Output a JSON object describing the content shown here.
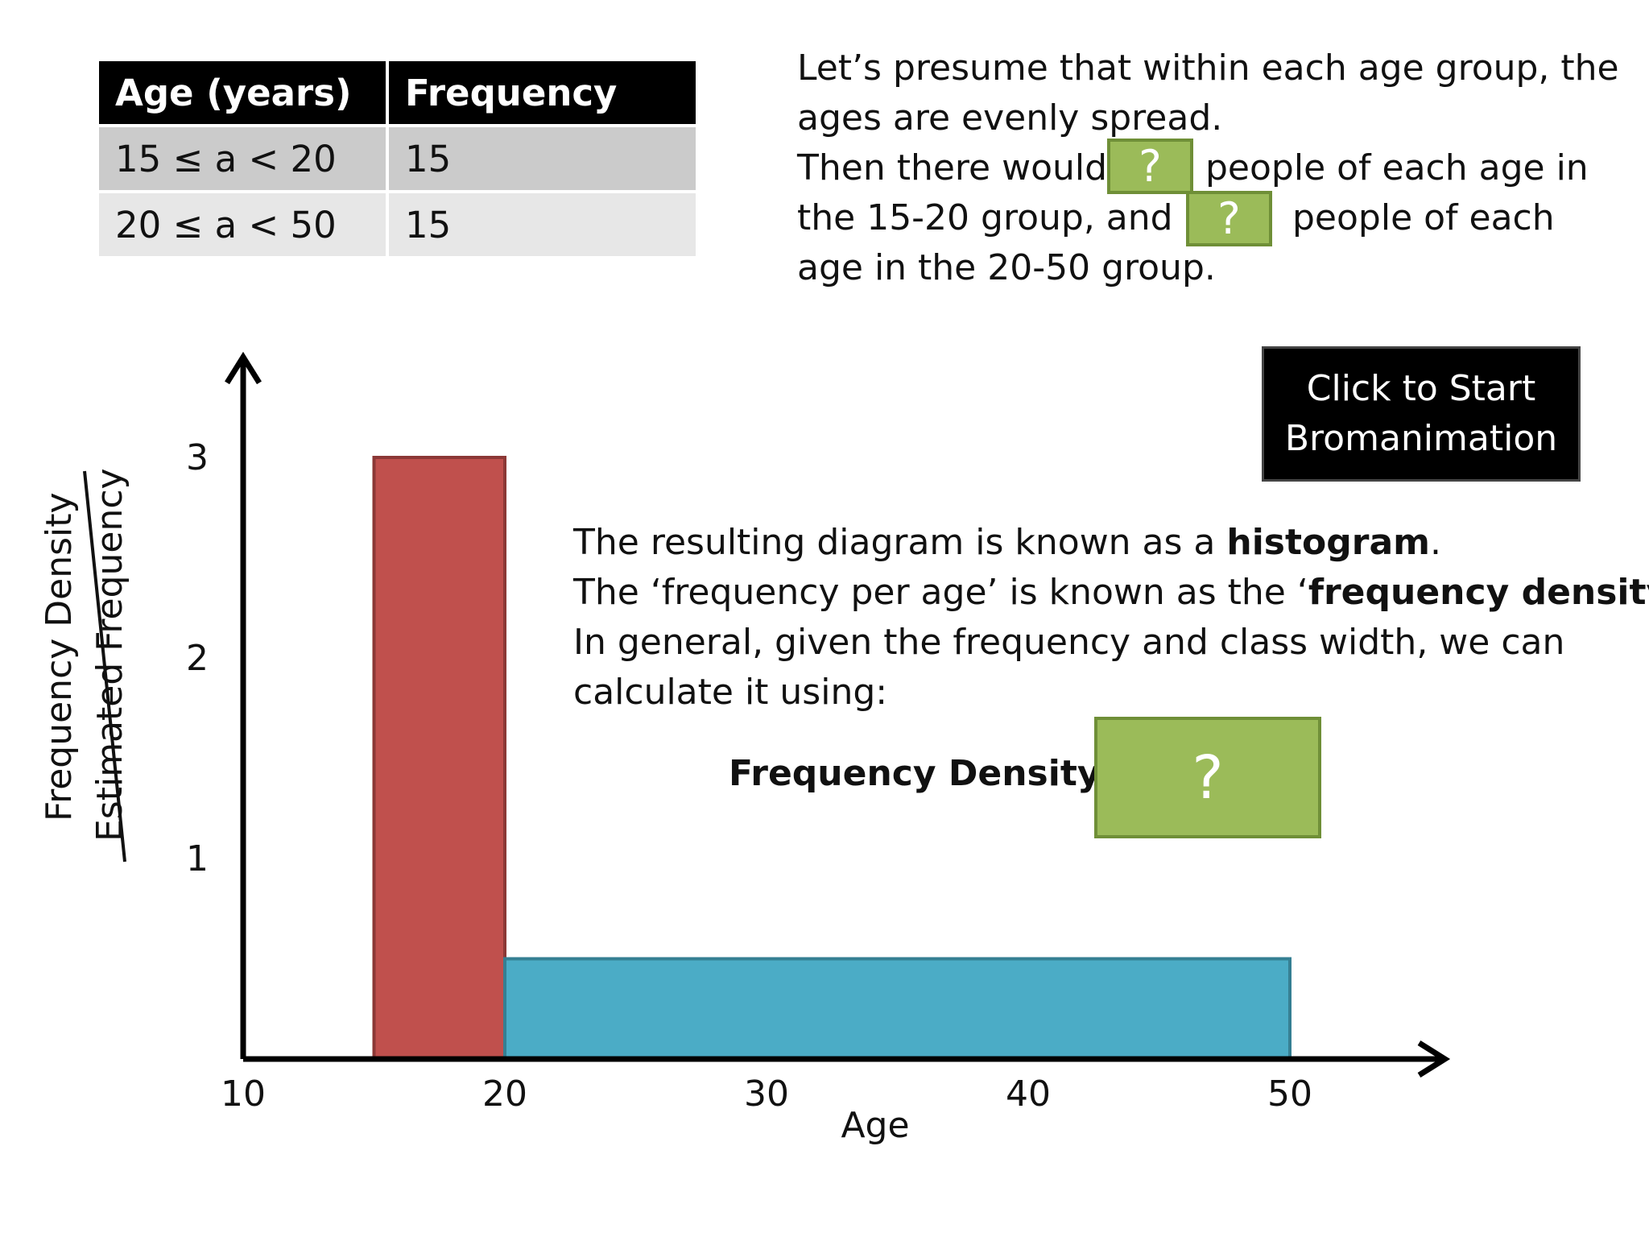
{
  "table": {
    "headers": [
      "Age (years)",
      "Frequency"
    ],
    "rows": [
      [
        "15 ≤ a < 20",
        "15"
      ],
      [
        "20 ≤ a < 50",
        "15"
      ]
    ]
  },
  "intro": {
    "line1": "Let’s presume that within each age group, the",
    "line2": "ages are evenly spread.",
    "line3a": "Then there would",
    "line3b": "people of each age in",
    "line4a": "the 15-20 group, and",
    "line4b": "people of each",
    "line5": "age in the 20-50 group.",
    "answer_placeholder": "?"
  },
  "start_button": {
    "line1": "Click to Start",
    "line2": "Bromanimation"
  },
  "info": {
    "l1_pre": "The resulting diagram is known as a ",
    "l1_bold": "histogram",
    "l1_post": ".",
    "l2_pre": "The ‘frequency per age’ is known as the ‘",
    "l2_bold": "frequency density",
    "l2_post": "’.",
    "l3": "In general, given the frequency and class width, we can",
    "l4": "calculate it using:"
  },
  "formula": {
    "label": "Frequency Density =",
    "placeholder": "?"
  },
  "chart_data": {
    "type": "bar",
    "xlabel": "Age",
    "ylabel": "Frequency Density",
    "ylabel_struck": "Estimated Frequency",
    "xlim": [
      10,
      55
    ],
    "ylim": [
      0,
      3.3
    ],
    "xticks": [
      10,
      20,
      30,
      40,
      50
    ],
    "yticks": [
      1,
      2,
      3
    ],
    "bars": [
      {
        "x0": 15,
        "x1": 20,
        "value": 3,
        "color": "#c0504d"
      },
      {
        "x0": 20,
        "x1": 50,
        "value": 0.5,
        "color": "#4bacc6"
      }
    ],
    "grid": false
  }
}
